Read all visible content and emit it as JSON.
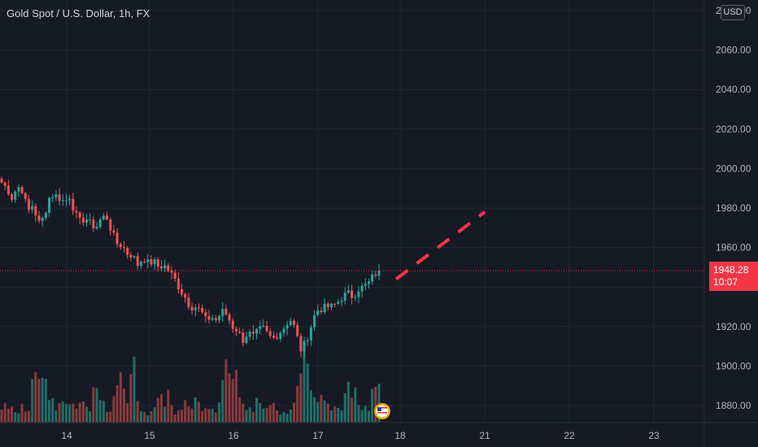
{
  "header": {
    "title": "Gold Spot / U.S. Dollar, 1h, FX",
    "currency": "USD"
  },
  "price_tag": {
    "price": "1948.28",
    "countdown": "10:07"
  },
  "colors": {
    "background": "#161a25",
    "grid": "#232734",
    "up": "#26a69a",
    "down": "#ef5350",
    "up_volume": "#1f6f68",
    "down_volume": "#8a3b3c",
    "projection": "#f23645",
    "axis_text": "#b2b5be"
  },
  "chart_data": {
    "type": "candlestick",
    "title": "Gold Spot / U.S. Dollar, 1h, FX",
    "symbol": "XAUUSD",
    "interval": "1h",
    "y_axis": {
      "side": "right",
      "ticks": [
        "1880.00",
        "1900.00",
        "1920.00",
        "1940.00",
        "1960.00",
        "1980.00",
        "2000.00",
        "2020.00",
        "2040.00",
        "2060.00",
        "2080.00"
      ],
      "ylim": [
        1864,
        2086
      ]
    },
    "x_axis": {
      "ticks": [
        {
          "label": "14",
          "day": 14
        },
        {
          "label": "15",
          "day": 15
        },
        {
          "label": "16",
          "day": 16
        },
        {
          "label": "17",
          "day": 17
        },
        {
          "label": "18",
          "day": 18
        },
        {
          "label": "21",
          "day": 21
        },
        {
          "label": "22",
          "day": 22
        },
        {
          "label": "23",
          "day": 23
        }
      ]
    },
    "last_price": 1948.28,
    "price_anchors": [
      1993,
      1990,
      1985,
      1991,
      1989,
      1978,
      1982,
      1972,
      1975,
      1985,
      1987,
      1985,
      1983,
      1986,
      1977,
      1973,
      1975,
      1972,
      1970,
      1975,
      1976,
      1968,
      1962,
      1961,
      1957,
      1956,
      1951,
      1955,
      1952,
      1953,
      1950,
      1951,
      1948,
      1944,
      1939,
      1935,
      1930,
      1930,
      1928,
      1923,
      1925,
      1923,
      1928,
      1926,
      1920,
      1918,
      1913,
      1917,
      1915,
      1918,
      1919,
      1915,
      1914,
      1917,
      1920,
      1924,
      1919,
      1908,
      1912,
      1920,
      1928,
      1929,
      1930,
      1930,
      1932,
      1935,
      1937,
      1935,
      1939,
      1940,
      1942,
      1946,
      1948.28
    ],
    "volume_anchors": [
      12,
      8,
      10,
      7,
      11,
      9,
      25,
      28,
      45,
      15,
      10,
      12,
      14,
      9,
      8,
      12,
      10,
      11,
      20,
      12,
      7,
      9,
      17,
      40,
      15,
      45,
      8,
      10,
      7,
      9,
      12,
      14,
      18,
      7,
      6,
      10,
      12,
      13,
      11,
      7,
      6,
      8,
      20,
      45,
      25,
      30,
      20,
      8,
      9,
      12,
      10,
      7,
      11,
      8,
      6,
      10,
      20,
      30,
      45,
      25,
      12,
      14,
      10,
      9,
      8,
      13,
      18,
      20,
      12,
      10,
      9,
      40,
      30
    ],
    "projection": {
      "style": "dashed",
      "color": "#f23645",
      "from": {
        "day": 17.95,
        "price": 1944
      },
      "to": {
        "day": 21.0,
        "price": 1978
      }
    }
  }
}
